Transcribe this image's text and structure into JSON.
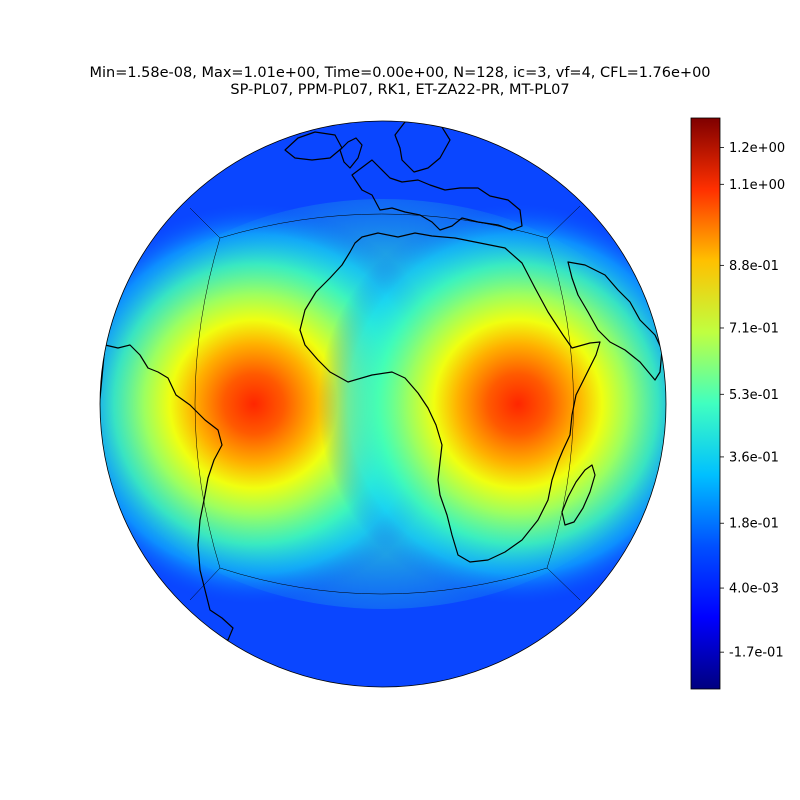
{
  "title": {
    "line1": "Min=1.58e-08, Max=1.01e+00, Time=0.00e+00, N=128, ic=3, vf=4, CFL=1.76e+00",
    "line2": "SP-PL07, PPM-PL07, RK1, ET-ZA22-PR, MT-PL07"
  },
  "map": {
    "projection": "orthographic",
    "field_extremes": {
      "min": "1.58e-08",
      "max": "1.01e+00"
    },
    "hotspots": [
      {
        "name": "west-hotspot",
        "value": 1.0
      },
      {
        "name": "east-hotspot",
        "value": 1.0
      }
    ],
    "colormap": "jet",
    "features": [
      "coastlines",
      "cubed-sphere-grid-edges"
    ]
  },
  "colorbar": {
    "range": [
      -0.27,
      1.28
    ],
    "ticks": [
      {
        "value": 1.2,
        "label": "1.2e+00"
      },
      {
        "value": 1.1,
        "label": "1.1e+00"
      },
      {
        "value": 0.88,
        "label": "8.8e-01"
      },
      {
        "value": 0.71,
        "label": "7.1e-01"
      },
      {
        "value": 0.53,
        "label": "5.3e-01"
      },
      {
        "value": 0.36,
        "label": "3.6e-01"
      },
      {
        "value": 0.18,
        "label": "1.8e-01"
      },
      {
        "value": 0.004,
        "label": "4.0e-03"
      },
      {
        "value": -0.17,
        "label": "-1.7e-01"
      }
    ],
    "colors": [
      "#00007f",
      "#0000ff",
      "#007fff",
      "#00ffff",
      "#7fff7f",
      "#ffff00",
      "#ff7f00",
      "#ff0000",
      "#7f0000"
    ]
  }
}
